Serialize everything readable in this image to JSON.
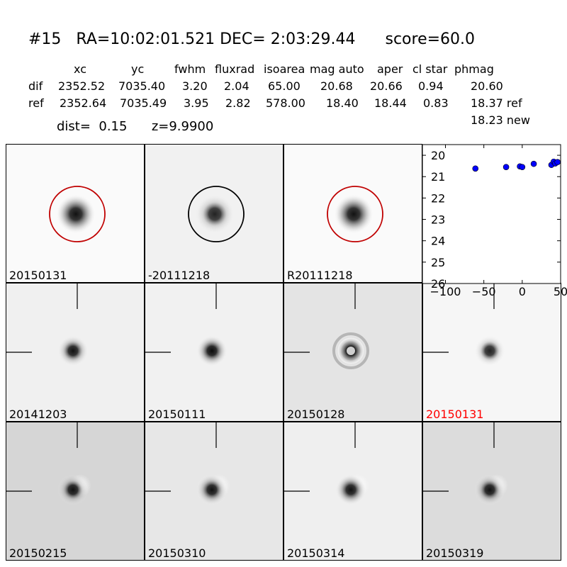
{
  "header": {
    "id": "#15",
    "coords": "RA=10:02:01.521 DEC= 2:03:29.44",
    "score": "score=60.0"
  },
  "table": {
    "columns": [
      "xc",
      "yc",
      "fwhm",
      "fluxrad",
      "isoarea",
      "mag auto",
      "aper",
      "cl star",
      "phmag"
    ],
    "rows": [
      {
        "name": "dif",
        "values": [
          "2352.52",
          "7035.40",
          "3.20",
          "2.04",
          "65.00",
          "20.68",
          "20.66",
          "0.94",
          "20.60"
        ]
      },
      {
        "name": "ref",
        "values": [
          "2352.64",
          "7035.49",
          "3.95",
          "2.82",
          "578.00",
          "18.40",
          "18.44",
          "0.83",
          "18.37 ref"
        ]
      }
    ],
    "phmag_new": "18.23 new"
  },
  "info": {
    "dist": "dist=  0.15",
    "z": "z=9.9900"
  },
  "panels": [
    {
      "label": "20150131",
      "bg": "#fafafa",
      "core": "#111111",
      "halo": 0.55,
      "ring": "#c00000",
      "label_color": "#000000"
    },
    {
      "label": "-20111218",
      "bg": "#f1f1f1",
      "core": "#222222",
      "halo": 0.25,
      "ring": "#000000",
      "label_color": "#000000"
    },
    {
      "label": "R20111218",
      "bg": "#fafafa",
      "core": "#111111",
      "halo": 0.55,
      "ring": "#c00000",
      "label_color": "#000000"
    },
    {
      "label": "20141203",
      "bg": "#f0f0f0",
      "core": "#111111",
      "halo": 0.35,
      "label_color": "#000000"
    },
    {
      "label": "20150111",
      "bg": "#f1f1f1",
      "core": "#0a0a0a",
      "halo": 0.45,
      "label_color": "#000000"
    },
    {
      "label": "20150128",
      "bg": "#e4e4e4",
      "core": "#000000",
      "halo": 0.5,
      "ring_dark": true,
      "label_color": "#000000"
    },
    {
      "label": "20150131",
      "bg": "#f6f6f6",
      "core": "#222222",
      "halo": 0.25,
      "label_color": "#ff0000"
    },
    {
      "label": "20150215",
      "bg": "#d6d6d6",
      "core": "#111111",
      "halo": 0.3,
      "white_lobe": true,
      "label_color": "#000000"
    },
    {
      "label": "20150310",
      "bg": "#e7e7e7",
      "core": "#111111",
      "halo": 0.4,
      "white_lobe": true,
      "label_color": "#000000"
    },
    {
      "label": "20150314",
      "bg": "#efefef",
      "core": "#111111",
      "halo": 0.45,
      "white_lobe": true,
      "label_color": "#000000"
    },
    {
      "label": "20150319",
      "bg": "#dcdcdc",
      "core": "#111111",
      "halo": 0.35,
      "white_lobe": true,
      "label_color": "#000000"
    }
  ],
  "chart_data": {
    "type": "scatter",
    "title": "",
    "xlabel": "",
    "ylabel": "",
    "xlim": [
      -130,
      50
    ],
    "ylim": [
      26,
      19.5
    ],
    "y_inverted": true,
    "xticks": [
      -100,
      -50,
      0,
      50
    ],
    "xtick_labels": [
      "−100",
      "−50",
      "0",
      "50"
    ],
    "yticks": [
      20,
      21,
      22,
      23,
      24,
      25,
      26
    ],
    "ytick_labels": [
      "20",
      "21",
      "22",
      "23",
      "24",
      "25",
      "26"
    ],
    "marker_color": "#0000ff",
    "series": [
      {
        "x": [
          -61,
          -21,
          -3,
          0,
          15,
          38,
          41,
          43,
          46
        ],
        "y": [
          20.62,
          20.55,
          20.52,
          20.55,
          20.4,
          20.45,
          20.3,
          20.38,
          20.32
        ]
      }
    ]
  }
}
